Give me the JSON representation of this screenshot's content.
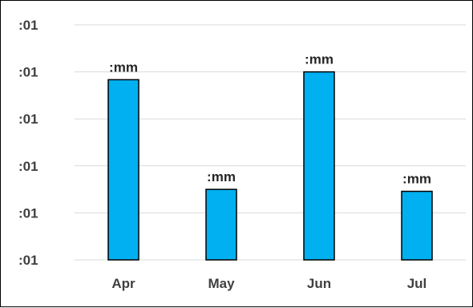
{
  "chart_data": {
    "type": "bar",
    "categories": [
      "Apr",
      "May",
      "Jun",
      "Jul"
    ],
    "values": [
      0.92,
      0.36,
      0.96,
      0.35
    ],
    "data_labels": [
      ":mm",
      ":mm",
      ":mm",
      ":mm"
    ],
    "y_tick_labels": [
      ":01",
      ":01",
      ":01",
      ":01",
      ":01",
      ":01"
    ],
    "ylim": [
      0,
      1.2
    ],
    "grid": true,
    "title": "",
    "xlabel": "",
    "ylabel": "",
    "colors": {
      "bar_fill": "#00B0F0",
      "bar_stroke": "#000000",
      "grid": "#D9D9D9"
    }
  }
}
